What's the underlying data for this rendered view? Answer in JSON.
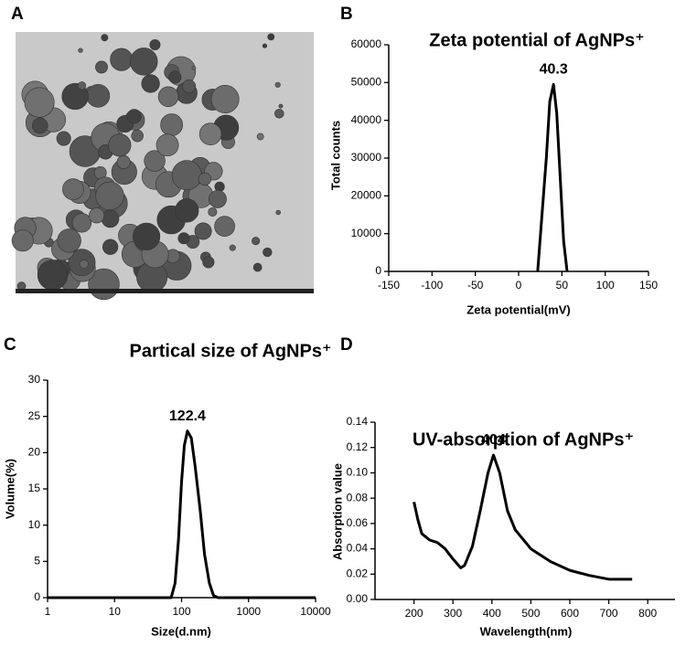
{
  "panels": [
    "A",
    "B",
    "C",
    "D"
  ],
  "chart_data": [
    {
      "type": "line",
      "title": "Zeta potential of AgNPs⁺",
      "x_label": "Zeta potential(mV)",
      "y_label": "Total counts",
      "annotation": "40.3",
      "color": "#000000",
      "x": [
        22,
        27,
        32,
        36,
        40.3,
        44,
        48,
        52,
        56
      ],
      "values": [
        0,
        15000,
        30000,
        45000,
        49500,
        42000,
        25000,
        8000,
        0
      ],
      "xlim": [
        -150,
        150
      ],
      "xticks": [
        -150,
        -100,
        -50,
        0,
        50,
        100,
        150
      ],
      "ylim": [
        0,
        60000
      ],
      "yticks": [
        0,
        10000,
        20000,
        30000,
        40000,
        50000,
        60000
      ],
      "grid": false
    },
    {
      "type": "line",
      "title": "Partical size of AgNPs⁺",
      "x_label": "Size(d.nm)",
      "y_label": "Volume(%)",
      "annotation": "122.4",
      "color": "#000000",
      "x_scale": "log",
      "x": [
        1,
        70,
        80,
        90,
        100,
        110,
        122.4,
        140,
        160,
        190,
        220,
        260,
        300,
        350,
        10000
      ],
      "values": [
        0,
        0,
        2,
        8,
        16,
        21,
        23,
        22,
        18,
        12,
        6,
        2,
        0.3,
        0,
        0
      ],
      "xlim": [
        1,
        10000
      ],
      "xticks": [
        1,
        10,
        100,
        1000,
        10000
      ],
      "ylim": [
        0,
        30
      ],
      "yticks": [
        0,
        5,
        10,
        15,
        20,
        25,
        30
      ],
      "grid": false
    },
    {
      "type": "line",
      "title": "UV-absorption of AgNPs⁺",
      "x_label": "Wavelength(nm)",
      "y_label": "Absorption value",
      "annotation": "404",
      "color": "#000000",
      "x": [
        200,
        210,
        220,
        240,
        260,
        280,
        300,
        320,
        330,
        350,
        370,
        390,
        404,
        420,
        440,
        460,
        500,
        550,
        600,
        650,
        700,
        760
      ],
      "values": [
        0.077,
        0.063,
        0.052,
        0.047,
        0.045,
        0.04,
        0.032,
        0.025,
        0.027,
        0.042,
        0.07,
        0.1,
        0.114,
        0.1,
        0.07,
        0.055,
        0.04,
        0.03,
        0.023,
        0.019,
        0.016,
        0.016
      ],
      "xlim": [
        100,
        870
      ],
      "xticks": [
        200,
        300,
        400,
        500,
        600,
        700,
        800
      ],
      "ylim": [
        0,
        0.14
      ],
      "yticks": [
        {
          "value": 0,
          "label": "0.00"
        },
        {
          "value": 0.02,
          "label": "0.02"
        },
        {
          "value": 0.04,
          "label": "0.04"
        },
        {
          "value": 0.06,
          "label": "0.06"
        },
        {
          "value": 0.08,
          "label": "0.08"
        },
        {
          "value": 0.1,
          "label": "0.10"
        },
        {
          "value": 0.12,
          "label": "0.12"
        },
        {
          "value": 0.14,
          "label": "0.14"
        }
      ],
      "grid": false
    }
  ]
}
